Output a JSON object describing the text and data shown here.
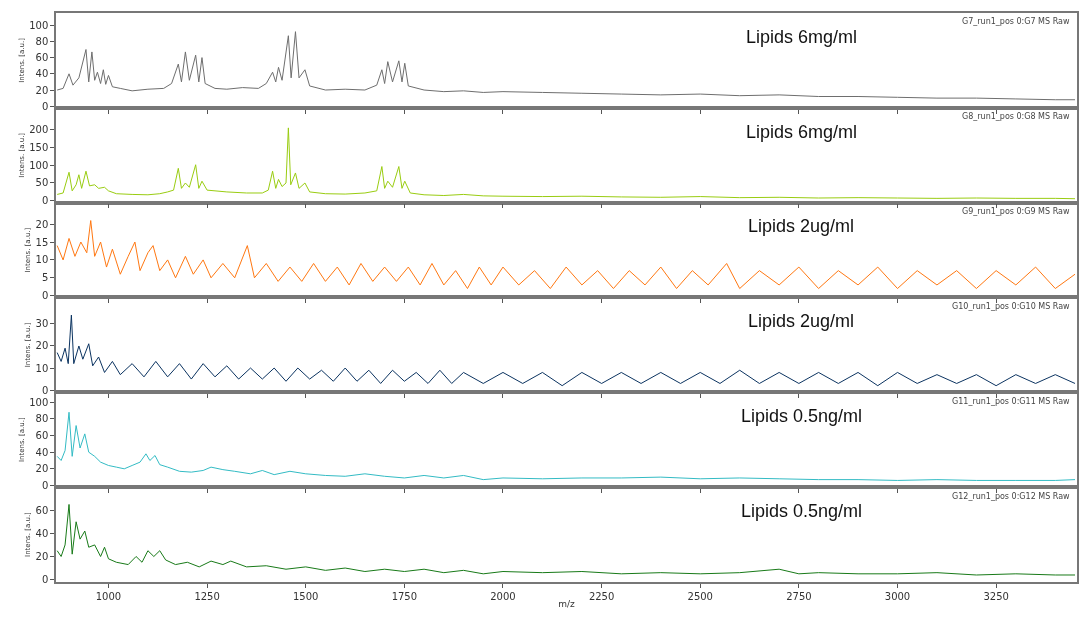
{
  "chart_data": [
    {
      "type": "line",
      "ylabel": "Intens. [a.u.]",
      "xlim": [
        867,
        3455
      ],
      "xticks": [
        1000,
        1250,
        1500,
        1750,
        2000,
        2250,
        2500,
        2750,
        3000,
        3250
      ],
      "ylim": [
        -2,
        115
      ],
      "yticks": [
        0,
        20,
        40,
        60,
        80,
        100
      ],
      "tick_labels": "y",
      "annotations": [
        "G7_run1_pos 0:G7 MS Raw",
        "Lipids 6mg/ml"
      ],
      "series": [
        {
          "color": "#6e6e6e",
          "x": [
            870,
            885,
            900,
            910,
            925,
            943,
            950,
            958,
            965,
            972,
            980,
            987,
            993,
            1000,
            1010,
            1030,
            1060,
            1100,
            1140,
            1160,
            1177,
            1185,
            1195,
            1205,
            1221,
            1229,
            1237,
            1245,
            1270,
            1300,
            1340,
            1380,
            1400,
            1416,
            1424,
            1431,
            1440,
            1456,
            1463,
            1474,
            1483,
            1498,
            1510,
            1550,
            1600,
            1650,
            1680,
            1693,
            1700,
            1708,
            1720,
            1736,
            1744,
            1751,
            1760,
            1800,
            1850,
            1900,
            1950,
            2000,
            2100,
            2200,
            2300,
            2400,
            2500,
            2600,
            2700,
            2800,
            2900,
            3000,
            3100,
            3200,
            3300,
            3400,
            3450
          ],
          "values": [
            20,
            22,
            40,
            26,
            35,
            70,
            30,
            67,
            32,
            42,
            28,
            45,
            27,
            38,
            24,
            22,
            19,
            21,
            22,
            28,
            52,
            30,
            67,
            32,
            63,
            30,
            60,
            28,
            22,
            21,
            23,
            22,
            28,
            42,
            30,
            48,
            32,
            87,
            35,
            92,
            35,
            45,
            25,
            20,
            21,
            20,
            26,
            45,
            28,
            55,
            30,
            56,
            30,
            53,
            25,
            20,
            18,
            19,
            17,
            18,
            17,
            16,
            15,
            14,
            15,
            13,
            14,
            12,
            12,
            11,
            10,
            10,
            9,
            8,
            8
          ]
        }
      ]
    },
    {
      "type": "line",
      "ylabel": "Intens. [a.u.]",
      "xlim": [
        867,
        3455
      ],
      "xticks": [
        1000,
        1250,
        1500,
        1750,
        2000,
        2250,
        2500,
        2750,
        3000,
        3250
      ],
      "ylim": [
        -5,
        260
      ],
      "yticks": [
        0,
        50,
        100,
        150,
        200
      ],
      "tick_labels": "y",
      "annotations": [
        "G8_run1_pos 0:G8 MS Raw",
        "Lipids 6mg/ml"
      ],
      "series": [
        {
          "color": "#99cc11",
          "x": [
            870,
            885,
            900,
            908,
            918,
            925,
            932,
            943,
            952,
            965,
            975,
            990,
            1000,
            1020,
            1060,
            1100,
            1130,
            1150,
            1165,
            1177,
            1185,
            1195,
            1205,
            1221,
            1229,
            1237,
            1250,
            1300,
            1350,
            1390,
            1405,
            1416,
            1424,
            1431,
            1440,
            1450,
            1456,
            1462,
            1474,
            1483,
            1498,
            1510,
            1550,
            1600,
            1650,
            1680,
            1693,
            1700,
            1708,
            1720,
            1736,
            1744,
            1751,
            1765,
            1800,
            1850,
            1900,
            1950,
            2000,
            2100,
            2200,
            2300,
            2400,
            2500,
            2600,
            2700,
            2800,
            2900,
            3000,
            3100,
            3200,
            3300,
            3400,
            3450
          ],
          "values": [
            18,
            22,
            80,
            28,
            45,
            73,
            35,
            83,
            42,
            45,
            35,
            38,
            28,
            20,
            18,
            17,
            20,
            25,
            30,
            91,
            35,
            50,
            38,
            101,
            35,
            55,
            30,
            25,
            22,
            22,
            30,
            83,
            35,
            60,
            40,
            50,
            204,
            45,
            78,
            35,
            50,
            25,
            20,
            19,
            22,
            28,
            96,
            35,
            55,
            38,
            96,
            35,
            55,
            22,
            17,
            15,
            18,
            14,
            13,
            12,
            13,
            11,
            10,
            12,
            9,
            10,
            8,
            9,
            8,
            7,
            8,
            7,
            7,
            6
          ]
        }
      ]
    },
    {
      "type": "line",
      "ylabel": "Intens. [a.u.]",
      "xlim": [
        867,
        3455
      ],
      "xticks": [
        1000,
        1250,
        1500,
        1750,
        2000,
        2250,
        2500,
        2750,
        3000,
        3250
      ],
      "ylim": [
        -0.5,
        26
      ],
      "yticks": [
        0,
        5,
        10,
        15,
        20
      ],
      "tick_labels": "y",
      "annotations": [
        "G9_run1_pos 0:G9 MS Raw",
        "Lipids 2ug/ml"
      ],
      "series": [
        {
          "color": "#ff7711",
          "x": [
            870,
            885,
            900,
            915,
            930,
            945,
            955,
            965,
            980,
            995,
            1010,
            1030,
            1050,
            1067,
            1080,
            1100,
            1113,
            1130,
            1150,
            1170,
            1195,
            1215,
            1240,
            1260,
            1290,
            1320,
            1352,
            1370,
            1400,
            1430,
            1460,
            1490,
            1520,
            1550,
            1580,
            1610,
            1640,
            1670,
            1700,
            1730,
            1760,
            1790,
            1820,
            1850,
            1880,
            1910,
            1940,
            1970,
            2000,
            2040,
            2080,
            2120,
            2160,
            2200,
            2240,
            2280,
            2320,
            2360,
            2400,
            2440,
            2480,
            2520,
            2567,
            2600,
            2650,
            2700,
            2750,
            2800,
            2850,
            2900,
            2950,
            3000,
            3050,
            3100,
            3150,
            3200,
            3250,
            3300,
            3350,
            3400,
            3450
          ],
          "values": [
            14,
            10,
            16,
            11,
            15,
            12,
            21,
            11,
            15,
            8,
            13,
            6,
            11,
            15,
            7,
            12,
            14,
            7,
            10,
            5,
            11,
            6,
            10,
            5,
            9,
            5,
            14,
            5,
            9,
            4,
            8,
            4,
            9,
            4,
            8,
            3,
            9,
            4,
            8,
            4,
            8,
            3,
            9,
            3,
            7,
            2,
            8,
            3,
            8,
            3,
            7,
            2,
            8,
            3,
            7,
            2,
            7,
            3,
            8,
            2,
            7,
            3,
            9,
            2,
            7,
            3,
            8,
            2,
            7,
            3,
            8,
            2,
            7,
            3,
            7,
            2,
            7,
            3,
            8,
            2,
            6
          ]
        }
      ]
    },
    {
      "type": "line",
      "ylabel": "Intens. [a.u.]",
      "xlim": [
        867,
        3455
      ],
      "xticks": [
        1000,
        1250,
        1500,
        1750,
        2000,
        2250,
        2500,
        2750,
        3000,
        3250
      ],
      "ylim": [
        -1,
        42
      ],
      "yticks": [
        0,
        10,
        20,
        30
      ],
      "tick_labels": "y",
      "annotations": [
        "G10_run1_pos 0:G10 MS Raw",
        "Lipids 2ug/ml"
      ],
      "series": [
        {
          "color": "#0b3360",
          "x": [
            870,
            880,
            890,
            898,
            906,
            912,
            925,
            935,
            950,
            960,
            975,
            990,
            1010,
            1030,
            1060,
            1090,
            1120,
            1150,
            1180,
            1210,
            1240,
            1270,
            1300,
            1330,
            1360,
            1390,
            1420,
            1450,
            1480,
            1510,
            1540,
            1570,
            1600,
            1630,
            1660,
            1690,
            1720,
            1750,
            1780,
            1810,
            1840,
            1870,
            1900,
            1950,
            2000,
            2050,
            2100,
            2150,
            2200,
            2250,
            2300,
            2350,
            2400,
            2450,
            2500,
            2550,
            2600,
            2650,
            2700,
            2750,
            2800,
            2850,
            2900,
            2950,
            3000,
            3050,
            3100,
            3150,
            3200,
            3250,
            3300,
            3350,
            3400,
            3450
          ],
          "values": [
            17,
            13,
            19,
            12,
            34,
            12,
            20,
            14,
            21,
            11,
            15,
            8,
            13,
            7,
            12,
            6,
            13,
            6,
            12,
            5,
            12,
            6,
            11,
            5,
            10,
            5,
            10,
            4,
            10,
            5,
            9,
            4,
            10,
            4,
            9,
            3,
            9,
            4,
            8,
            3,
            9,
            3,
            8,
            3,
            8,
            3,
            8,
            2,
            8,
            3,
            8,
            3,
            8,
            3,
            8,
            3,
            9,
            3,
            8,
            3,
            8,
            3,
            8,
            2,
            8,
            3,
            7,
            3,
            7,
            2,
            7,
            3,
            7,
            3
          ]
        }
      ]
    },
    {
      "type": "line",
      "ylabel": "Intens. [a.u.]",
      "xlim": [
        867,
        3455
      ],
      "xticks": [
        1000,
        1250,
        1500,
        1750,
        2000,
        2250,
        2500,
        2750,
        3000,
        3250
      ],
      "ylim": [
        -2,
        112
      ],
      "yticks": [
        0,
        20,
        40,
        60,
        80,
        100
      ],
      "tick_labels": "y",
      "annotations": [
        "G11_run1_pos 0:G11 MS Raw",
        "Lipids 0.5ng/ml"
      ],
      "series": [
        {
          "color": "#33bbc4",
          "x": [
            870,
            880,
            890,
            900,
            908,
            918,
            928,
            940,
            950,
            965,
            980,
            1000,
            1020,
            1040,
            1060,
            1080,
            1095,
            1105,
            1118,
            1130,
            1150,
            1180,
            1210,
            1240,
            1260,
            1290,
            1320,
            1360,
            1390,
            1420,
            1460,
            1500,
            1550,
            1600,
            1650,
            1700,
            1750,
            1800,
            1850,
            1900,
            1950,
            2000,
            2100,
            2200,
            2300,
            2400,
            2500,
            2600,
            2700,
            2800,
            2900,
            3000,
            3100,
            3200,
            3300,
            3400,
            3450
          ],
          "values": [
            35,
            30,
            42,
            88,
            35,
            72,
            45,
            62,
            40,
            35,
            28,
            24,
            22,
            20,
            24,
            28,
            38,
            30,
            36,
            25,
            22,
            17,
            16,
            18,
            22,
            19,
            17,
            14,
            18,
            13,
            17,
            14,
            12,
            11,
            14,
            11,
            9,
            12,
            9,
            12,
            7,
            9,
            8,
            9,
            9,
            10,
            8,
            9,
            8,
            7,
            7,
            6,
            7,
            6,
            6,
            6,
            7
          ]
        }
      ]
    },
    {
      "type": "line",
      "ylabel": "Intens. [a.u.]",
      "xlabel": "m/z",
      "xlim": [
        867,
        3455
      ],
      "xticks": [
        1000,
        1250,
        1500,
        1750,
        2000,
        2250,
        2500,
        2750,
        3000,
        3250
      ],
      "ylim": [
        -2,
        80
      ],
      "yticks": [
        0,
        20,
        40,
        60
      ],
      "annotations": [
        "G12_run1_pos 0:G12 MS Raw",
        "Lipids 0.5ng/ml"
      ],
      "series": [
        {
          "color": "#187a18",
          "x": [
            870,
            880,
            890,
            900,
            908,
            918,
            928,
            940,
            950,
            965,
            980,
            990,
            1000,
            1020,
            1050,
            1070,
            1085,
            1100,
            1115,
            1130,
            1145,
            1170,
            1200,
            1230,
            1260,
            1290,
            1310,
            1350,
            1400,
            1450,
            1500,
            1550,
            1600,
            1650,
            1700,
            1750,
            1800,
            1850,
            1900,
            1950,
            2000,
            2100,
            2200,
            2300,
            2400,
            2500,
            2600,
            2700,
            2750,
            2800,
            2900,
            3000,
            3100,
            3200,
            3300,
            3400,
            3450
          ],
          "values": [
            25,
            20,
            30,
            65,
            22,
            50,
            35,
            42,
            28,
            30,
            20,
            28,
            18,
            15,
            13,
            20,
            15,
            25,
            20,
            25,
            17,
            13,
            15,
            11,
            16,
            13,
            16,
            11,
            12,
            9,
            11,
            8,
            10,
            7,
            9,
            7,
            9,
            6,
            8,
            5,
            7,
            6,
            7,
            5,
            6,
            5,
            6,
            9,
            5,
            6,
            5,
            5,
            6,
            4,
            5,
            4,
            4
          ]
        }
      ]
    }
  ]
}
